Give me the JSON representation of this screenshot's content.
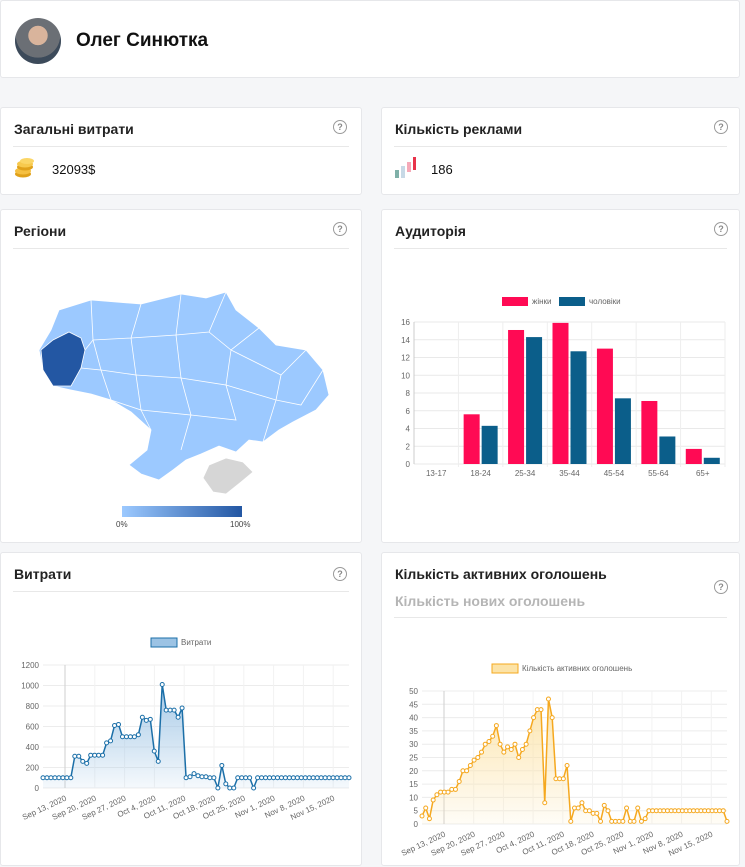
{
  "profile": {
    "name": "Олег Синютка"
  },
  "help_glyph": "?",
  "cards": {
    "total_spend": {
      "title": "Загальні витрати",
      "value": "32093$"
    },
    "ads_count": {
      "title": "Кількість реклами",
      "value": "186"
    },
    "regions": {
      "title": "Регіони",
      "scale_min": "0%",
      "scale_max": "100%"
    },
    "audience": {
      "title": "Аудиторія"
    },
    "spend": {
      "title": "Витрати"
    },
    "active_ads": {
      "title": "Кількість активних оголошень",
      "subtitle": "Кількість нових оголошень"
    }
  },
  "colors": {
    "women": "#ff0a54",
    "men": "#0b5e8a",
    "spend_line": "#1b6fa8",
    "spend_fill": "#9cc3e4",
    "active_line": "#f5a81f",
    "active_fill": "#fce3a7",
    "map_base": "#9cc9ff",
    "map_highlight": "#2357a3",
    "map_crimea": "#d6d6d6"
  },
  "chart_data": [
    {
      "type": "bar",
      "categories": [
        "13-17",
        "18-24",
        "25-34",
        "35-44",
        "45-54",
        "55-64",
        "65+"
      ],
      "series": [
        {
          "name": "жінки",
          "values": [
            0,
            5.6,
            15.1,
            15.9,
            13.0,
            7.1,
            1.7
          ]
        },
        {
          "name": "чоловіки",
          "values": [
            0,
            4.3,
            14.3,
            12.7,
            7.4,
            3.1,
            0.7
          ]
        }
      ],
      "ylim": [
        0,
        16
      ],
      "yticks": [
        0,
        2,
        4,
        6,
        8,
        10,
        12,
        14,
        16
      ],
      "legend": "top",
      "grid": true
    },
    {
      "type": "area",
      "series": [
        {
          "name": "Витрати",
          "values": [
            100,
            100,
            100,
            100,
            100,
            100,
            100,
            100,
            310,
            310,
            260,
            240,
            320,
            320,
            320,
            320,
            440,
            460,
            610,
            620,
            500,
            500,
            500,
            500,
            520,
            690,
            660,
            670,
            360,
            260,
            1010,
            760,
            760,
            760,
            690,
            780,
            100,
            110,
            140,
            120,
            110,
            110,
            100,
            100,
            0,
            220,
            40,
            0,
            0,
            100,
            100,
            100,
            100,
            0,
            100,
            100,
            100,
            100,
            100,
            100,
            100,
            100,
            100,
            100,
            100,
            100,
            100,
            100,
            100,
            100,
            100,
            100,
            100,
            100,
            100,
            100,
            100,
            100
          ]
        }
      ],
      "xticks": [
        "Sep 13, 2020",
        "Sep 20, 2020",
        "Sep 27, 2020",
        "Oct 4, 2020",
        "Oct 11, 2020",
        "Oct 18, 2020",
        "Oct 25, 2020",
        "Nov 1, 2020",
        "Nov 8, 2020",
        "Nov 15, 2020"
      ],
      "ylim": [
        0,
        1200
      ],
      "yticks": [
        0,
        200,
        400,
        600,
        800,
        1000,
        1200
      ],
      "legend": "top",
      "grid": true
    },
    {
      "type": "area",
      "series": [
        {
          "name": "Кількість активних оголошень",
          "values": [
            3,
            6,
            2,
            9,
            11,
            12,
            12,
            12,
            13,
            13,
            16,
            20,
            20,
            22,
            24,
            25,
            27,
            30,
            31,
            33,
            37,
            30,
            27,
            29,
            28,
            30,
            25,
            28,
            30,
            35,
            40,
            43,
            43,
            8,
            47,
            40,
            17,
            17,
            17,
            22,
            1,
            6,
            6,
            8,
            5,
            5,
            4,
            4,
            1,
            7,
            5,
            1,
            1,
            1,
            1,
            6,
            1,
            1,
            6,
            1,
            2,
            5,
            5,
            5,
            5,
            5,
            5,
            5,
            5,
            5,
            5,
            5,
            5,
            5,
            5,
            5,
            5,
            5,
            5,
            5,
            5,
            5,
            1
          ]
        }
      ],
      "xticks": [
        "Sep 13, 2020",
        "Sep 20, 2020",
        "Sep 27, 2020",
        "Oct 4, 2020",
        "Oct 11, 2020",
        "Oct 18, 2020",
        "Oct 25, 2020",
        "Nov 1, 2020",
        "Nov 8, 2020",
        "Nov 15, 2020"
      ],
      "ylim": [
        0,
        50
      ],
      "yticks": [
        0,
        5,
        10,
        15,
        20,
        25,
        30,
        35,
        40,
        45,
        50
      ],
      "legend": "top",
      "grid": true
    }
  ]
}
